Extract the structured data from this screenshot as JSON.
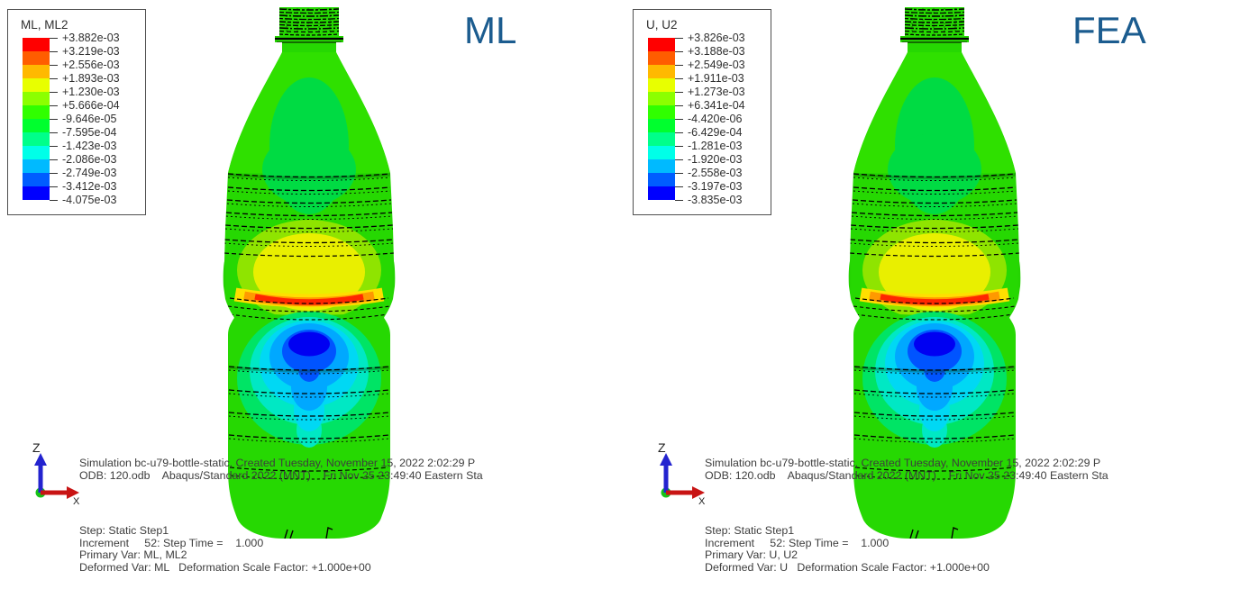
{
  "figure": {
    "description_left": "ML contour result",
    "description_right": "FEA contour result"
  },
  "colors": {
    "background": "#ffffff",
    "label_blue": "#1b5c8f",
    "annotation_gray": "#3d3d3d",
    "legend_border": "#4f4f4f"
  },
  "legend_colors": [
    "#ff0000",
    "#ff5d00",
    "#ffb900",
    "#e8ff00",
    "#8cff00",
    "#30ff00",
    "#00ff2e",
    "#00ff8a",
    "#00ffe8",
    "#00baff",
    "#005dff",
    "#0000ff"
  ],
  "panels": [
    {
      "id": "ml",
      "big_label": "ML",
      "legend": {
        "title": "ML, ML2",
        "values": [
          "+3.882e-03",
          "+3.219e-03",
          "+2.556e-03",
          "+1.893e-03",
          "+1.230e-03",
          "+5.666e-04",
          "-9.646e-05",
          "-7.595e-04",
          "-1.423e-03",
          "-2.086e-03",
          "-2.749e-03",
          "-3.412e-03",
          "-4.075e-03"
        ]
      },
      "triad": {
        "up_axis": "Z",
        "right_axis": "X"
      },
      "footer": {
        "header_lines": [
          "Simulation bc-u79-bottle-static, Created Tuesday, November 15, 2022 2:02:29 P",
          "ODB: 120.odb    Abaqus/Standard 2022 (MNT)    Fri Nov 25 23:49:40 Eastern Sta"
        ],
        "state_lines": [
          "Step: Static Step1",
          "Increment     52: Step Time =    1.000",
          "Primary Var: ML, ML2",
          "Deformed Var: ML   Deformation Scale Factor: +1.000e+00"
        ]
      }
    },
    {
      "id": "fea",
      "big_label": "FEA",
      "legend": {
        "title": "U, U2",
        "values": [
          "+3.826e-03",
          "+3.188e-03",
          "+2.549e-03",
          "+1.911e-03",
          "+1.273e-03",
          "+6.341e-04",
          "-4.420e-06",
          "-6.429e-04",
          "-1.281e-03",
          "-1.920e-03",
          "-2.558e-03",
          "-3.197e-03",
          "-3.835e-03"
        ]
      },
      "triad": {
        "up_axis": "Z",
        "right_axis": "X"
      },
      "footer": {
        "header_lines": [
          "Simulation bc-u79-bottle-static, Created Tuesday, November 15, 2022 2:02:29 P",
          "ODB: 120.odb    Abaqus/Standard 2022 (MNT)    Fri Nov 25 23:49:40 Eastern Sta"
        ],
        "state_lines": [
          "Step: Static Step1",
          "Increment     52: Step Time =    1.000",
          "Primary Var: U, U2",
          "Deformed Var: U   Deformation Scale Factor: +1.000e+00"
        ]
      }
    }
  ],
  "chart_data": [
    {
      "type": "heatmap",
      "title": "ML",
      "legend_title": "ML, ML2",
      "field": "ML-predicted vertical displacement component ML2 on deformed bottle",
      "contour_levels_display": [
        "+3.882e-03",
        "+3.219e-03",
        "+2.556e-03",
        "+1.893e-03",
        "+1.230e-03",
        "+5.666e-04",
        "-9.646e-05",
        "-7.595e-04",
        "-1.423e-03",
        "-2.086e-03",
        "-2.749e-03",
        "-3.412e-03",
        "-4.075e-03"
      ],
      "contour_levels": [
        0.003882,
        0.003219,
        0.002556,
        0.001893,
        0.00123,
        0.0005666,
        -9.646e-05,
        -0.0007595,
        -0.001423,
        -0.002086,
        -0.002749,
        -0.003412,
        -0.004075
      ],
      "max": 0.003882,
      "min": -0.004075,
      "band_colors": [
        "#ff0000",
        "#ff5d00",
        "#ffb900",
        "#e8ff00",
        "#8cff00",
        "#30ff00",
        "#00ff2e",
        "#00ff8a",
        "#00ffe8",
        "#00baff",
        "#005dff",
        "#0000ff"
      ],
      "legend_position": "top-left",
      "notes": "Bottle mostly green (near zero); yellow maximum-adjacent zone on label panel; thin red (max) band at waist groove; dark blue (min) blob just below waist fading down the lower body; step annotation: Static Step1, increment 52, step time 1.000, deformation scale factor +1.000e+00."
    },
    {
      "type": "heatmap",
      "title": "FEA",
      "legend_title": "U, U2",
      "field": "FEA vertical displacement component U2 on deformed bottle",
      "contour_levels_display": [
        "+3.826e-03",
        "+3.188e-03",
        "+2.549e-03",
        "+1.911e-03",
        "+1.273e-03",
        "+6.341e-04",
        "-4.420e-06",
        "-6.429e-04",
        "-1.281e-03",
        "-1.920e-03",
        "-2.558e-03",
        "-3.197e-03",
        "-3.835e-03"
      ],
      "contour_levels": [
        0.003826,
        0.003188,
        0.002549,
        0.001911,
        0.001273,
        0.0006341,
        -4.42e-06,
        -0.0006429,
        -0.001281,
        -0.00192,
        -0.002558,
        -0.003197,
        -0.003835
      ],
      "max": 0.003826,
      "min": -0.003835,
      "band_colors": [
        "#ff0000",
        "#ff5d00",
        "#ffb900",
        "#e8ff00",
        "#8cff00",
        "#30ff00",
        "#00ff2e",
        "#00ff8a",
        "#00ffe8",
        "#00baff",
        "#005dff",
        "#0000ff"
      ],
      "legend_position": "top-left",
      "notes": "Visually near-identical contour distribution to ML panel; same red max band at waist and dark blue min blob below it."
    }
  ]
}
